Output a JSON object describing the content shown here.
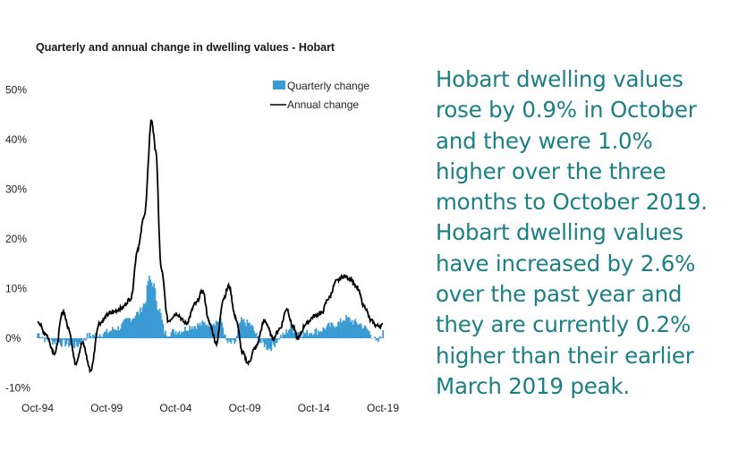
{
  "chart_data": {
    "type": "bar+line",
    "title": "Quarterly and annual change in dwelling values - Hobart",
    "xlabel": "",
    "ylabel": "",
    "ylim": [
      -10,
      50
    ],
    "yticks": [
      -10,
      0,
      10,
      20,
      30,
      40,
      50
    ],
    "ytick_labels": [
      "-10%",
      "0%",
      "10%",
      "20%",
      "30%",
      "40%",
      "50%"
    ],
    "xtick_labels": [
      "Oct-94",
      "Oct-99",
      "Oct-04",
      "Oct-09",
      "Oct-14",
      "Oct-19"
    ],
    "x_start": "Oct-94",
    "x_end": "Oct-19",
    "quarterly_color": "#3b9bd3",
    "annual_color": "#000000",
    "legend": [
      "Quarterly change",
      "Annual change"
    ],
    "legend_position": "top-right",
    "series": [
      {
        "name": "Quarterly change",
        "kind": "bar",
        "anchors": [
          [
            1994.75,
            1.0
          ],
          [
            1995.5,
            -0.5
          ],
          [
            1996.5,
            -1.0
          ],
          [
            1997.5,
            -1.5
          ],
          [
            1998.5,
            0.5
          ],
          [
            1999.5,
            1.0
          ],
          [
            2000.5,
            2.0
          ],
          [
            2001.5,
            4.0
          ],
          [
            2002.0,
            5.0
          ],
          [
            2002.5,
            7.0
          ],
          [
            2002.8,
            12.0
          ],
          [
            2003.1,
            11.0
          ],
          [
            2003.5,
            6.0
          ],
          [
            2004.0,
            1.0
          ],
          [
            2005.0,
            1.5
          ],
          [
            2006.0,
            2.5
          ],
          [
            2007.0,
            3.0
          ],
          [
            2008.0,
            3.5
          ],
          [
            2008.5,
            -1.0
          ],
          [
            2009.0,
            -1.0
          ],
          [
            2009.5,
            3.5
          ],
          [
            2010.0,
            3.0
          ],
          [
            2011.0,
            -1.0
          ],
          [
            2011.5,
            -2.0
          ],
          [
            2012.5,
            0.5
          ],
          [
            2013.0,
            2.0
          ],
          [
            2014.0,
            1.0
          ],
          [
            2015.0,
            1.5
          ],
          [
            2016.0,
            2.5
          ],
          [
            2016.5,
            3.0
          ],
          [
            2017.0,
            4.0
          ],
          [
            2018.0,
            3.0
          ],
          [
            2018.5,
            2.0
          ],
          [
            2019.0,
            0.5
          ],
          [
            2019.3,
            -1.0
          ],
          [
            2019.75,
            1.0
          ]
        ]
      },
      {
        "name": "Annual change",
        "kind": "line",
        "anchors": [
          [
            1994.75,
            3.5
          ],
          [
            1995.3,
            1.0
          ],
          [
            1996.0,
            -3.0
          ],
          [
            1996.6,
            5.5
          ],
          [
            1997.0,
            2.0
          ],
          [
            1997.5,
            -5.0
          ],
          [
            1998.0,
            -1.0
          ],
          [
            1998.6,
            -6.5
          ],
          [
            1999.2,
            3.0
          ],
          [
            2000.0,
            5.0
          ],
          [
            2000.8,
            6.0
          ],
          [
            2001.5,
            8.0
          ],
          [
            2002.0,
            18.0
          ],
          [
            2002.5,
            25.0
          ],
          [
            2003.0,
            44.0
          ],
          [
            2003.3,
            38.0
          ],
          [
            2003.7,
            14.0
          ],
          [
            2004.2,
            3.5
          ],
          [
            2004.8,
            5.0
          ],
          [
            2005.5,
            3.0
          ],
          [
            2006.2,
            7.0
          ],
          [
            2006.7,
            9.5
          ],
          [
            2007.2,
            3.0
          ],
          [
            2007.7,
            -1.0
          ],
          [
            2008.2,
            8.0
          ],
          [
            2008.6,
            10.5
          ],
          [
            2009.1,
            4.0
          ],
          [
            2009.6,
            -3.0
          ],
          [
            2010.0,
            -5.0
          ],
          [
            2010.5,
            -2.0
          ],
          [
            2011.2,
            3.5
          ],
          [
            2011.8,
            0.0
          ],
          [
            2012.3,
            2.0
          ],
          [
            2012.8,
            6.0
          ],
          [
            2013.2,
            2.5
          ],
          [
            2013.6,
            0.0
          ],
          [
            2014.2,
            3.0
          ],
          [
            2014.8,
            4.5
          ],
          [
            2015.3,
            5.0
          ],
          [
            2015.8,
            8.0
          ],
          [
            2016.4,
            11.5
          ],
          [
            2016.9,
            12.5
          ],
          [
            2017.4,
            12.0
          ],
          [
            2017.9,
            10.0
          ],
          [
            2018.4,
            6.5
          ],
          [
            2018.9,
            3.5
          ],
          [
            2019.3,
            2.5
          ],
          [
            2019.75,
            2.6
          ]
        ]
      }
    ]
  },
  "commentary": {
    "lines": [
      "Hobart dwelling values",
      "rose by 0.9% in October",
      "and they were 1.0%",
      "higher over the three",
      "months to October 2019.",
      "Hobart dwelling values",
      "have increased by 2.6%",
      "over the past year and",
      "they are currently 0.2%",
      "higher than their earlier",
      "March 2019 peak."
    ]
  }
}
